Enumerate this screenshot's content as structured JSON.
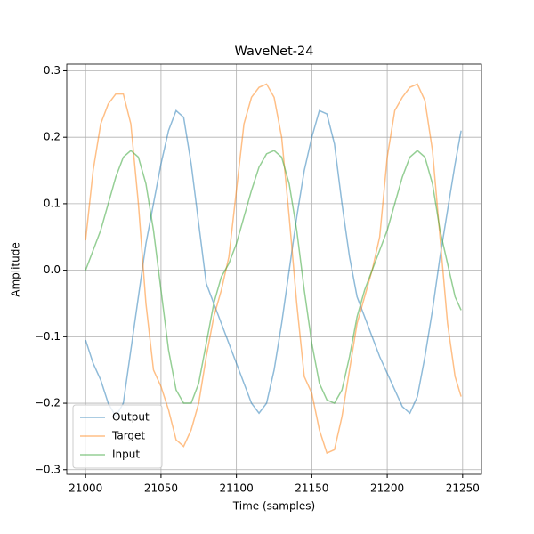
{
  "chart_data": {
    "type": "line",
    "title": "WaveNet-24",
    "xlabel": "Time (samples)",
    "ylabel": "Amplitude",
    "x": [
      21000,
      21005,
      21010,
      21015,
      21020,
      21025,
      21030,
      21035,
      21040,
      21045,
      21050,
      21055,
      21060,
      21065,
      21070,
      21075,
      21080,
      21085,
      21090,
      21095,
      21100,
      21105,
      21110,
      21115,
      21120,
      21125,
      21130,
      21135,
      21140,
      21145,
      21150,
      21155,
      21160,
      21165,
      21170,
      21175,
      21180,
      21185,
      21190,
      21195,
      21200,
      21205,
      21210,
      21215,
      21220,
      21225,
      21230,
      21235,
      21240,
      21245,
      21249
    ],
    "series": [
      {
        "name": "Output",
        "color": "#1f77b4",
        "values": [
          -0.105,
          -0.14,
          -0.165,
          -0.2,
          -0.22,
          -0.2,
          -0.12,
          -0.04,
          0.04,
          0.1,
          0.16,
          0.21,
          0.24,
          0.23,
          0.16,
          0.07,
          -0.02,
          -0.05,
          -0.08,
          -0.11,
          -0.14,
          -0.17,
          -0.2,
          -0.215,
          -0.2,
          -0.15,
          -0.08,
          0.0,
          0.08,
          0.15,
          0.2,
          0.24,
          0.235,
          0.19,
          0.1,
          0.02,
          -0.04,
          -0.07,
          -0.1,
          -0.13,
          -0.155,
          -0.18,
          -0.205,
          -0.215,
          -0.19,
          -0.13,
          -0.06,
          0.02,
          0.09,
          0.16,
          0.21
        ]
      },
      {
        "name": "Target",
        "color": "#ff7f0e",
        "values": [
          0.045,
          0.15,
          0.22,
          0.25,
          0.265,
          0.265,
          0.22,
          0.1,
          -0.05,
          -0.15,
          -0.175,
          -0.21,
          -0.255,
          -0.265,
          -0.24,
          -0.2,
          -0.13,
          -0.07,
          -0.03,
          0.02,
          0.12,
          0.22,
          0.26,
          0.275,
          0.28,
          0.26,
          0.2,
          0.08,
          -0.05,
          -0.16,
          -0.185,
          -0.24,
          -0.275,
          -0.27,
          -0.22,
          -0.15,
          -0.08,
          -0.04,
          0.0,
          0.05,
          0.17,
          0.24,
          0.26,
          0.275,
          0.28,
          0.255,
          0.18,
          0.05,
          -0.08,
          -0.16,
          -0.19
        ]
      },
      {
        "name": "Input",
        "color": "#2ca02c",
        "values": [
          0.0,
          0.03,
          0.06,
          0.1,
          0.14,
          0.17,
          0.18,
          0.17,
          0.13,
          0.06,
          -0.03,
          -0.12,
          -0.18,
          -0.2,
          -0.2,
          -0.17,
          -0.11,
          -0.05,
          -0.01,
          0.01,
          0.04,
          0.08,
          0.12,
          0.155,
          0.175,
          0.18,
          0.17,
          0.13,
          0.06,
          -0.03,
          -0.11,
          -0.17,
          -0.195,
          -0.2,
          -0.18,
          -0.13,
          -0.07,
          -0.03,
          0.0,
          0.03,
          0.06,
          0.1,
          0.14,
          0.17,
          0.18,
          0.17,
          0.13,
          0.06,
          0.01,
          -0.04,
          -0.06
        ]
      }
    ],
    "line_alpha": 0.5,
    "xlim": [
      20987.5,
      21262.5
    ],
    "ylim": [
      -0.307,
      0.31
    ],
    "xticks": [
      21000,
      21050,
      21100,
      21150,
      21200,
      21250
    ],
    "yticks": [
      {
        "value": -0.3,
        "label": "−0.3"
      },
      {
        "value": -0.2,
        "label": "−0.2"
      },
      {
        "value": -0.1,
        "label": "−0.1"
      },
      {
        "value": 0,
        "label": "0.0"
      },
      0.1,
      0.2,
      0.3
    ],
    "grid": true,
    "legend": "lower left"
  }
}
